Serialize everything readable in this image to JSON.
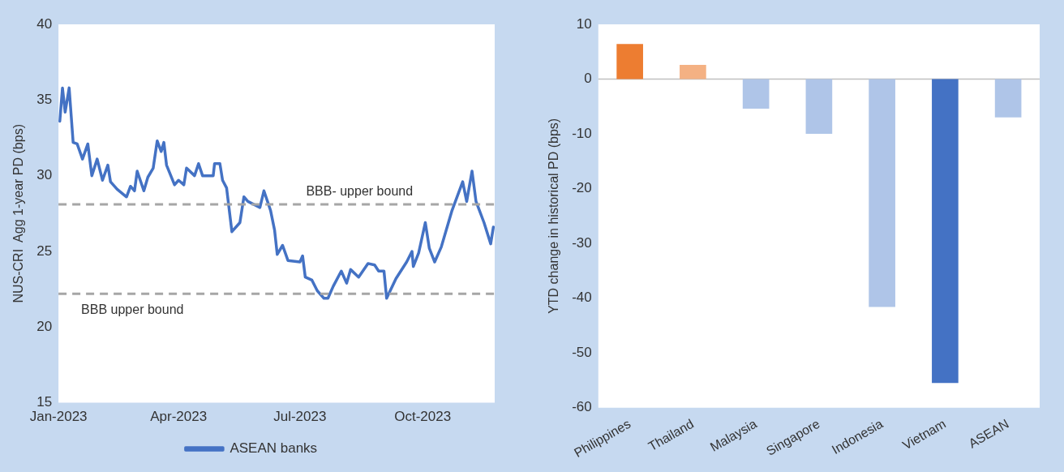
{
  "chart_data": [
    {
      "type": "line",
      "ylabel": "NUS-CRI  Agg 1-year PD (bps)",
      "xlim": [
        "2023-01-01",
        "2023-11-24"
      ],
      "xticks": [
        {
          "value": "2023-01-01",
          "label": "Jan-2023"
        },
        {
          "value": "2023-04-01",
          "label": "Apr-2023"
        },
        {
          "value": "2023-07-01",
          "label": "Jul-2023"
        },
        {
          "value": "2023-10-01",
          "label": "Oct-2023"
        }
      ],
      "ylim": [
        15,
        40
      ],
      "yticks": [
        15,
        20,
        25,
        30,
        35,
        40
      ],
      "legend": "bottom",
      "line_style": "solid",
      "series": [
        {
          "name": "ASEAN banks",
          "color": "#4472c4",
          "x": [
            "2023-01-02",
            "2023-01-04",
            "2023-01-06",
            "2023-01-09",
            "2023-01-12",
            "2023-01-15",
            "2023-01-19",
            "2023-01-23",
            "2023-01-26",
            "2023-01-30",
            "2023-02-03",
            "2023-02-07",
            "2023-02-09",
            "2023-02-14",
            "2023-02-21",
            "2023-02-24",
            "2023-02-27",
            "2023-03-01",
            "2023-03-06",
            "2023-03-09",
            "2023-03-13",
            "2023-03-16",
            "2023-03-19",
            "2023-03-21",
            "2023-03-23",
            "2023-03-29",
            "2023-04-01",
            "2023-04-05",
            "2023-04-07",
            "2023-04-13",
            "2023-04-16",
            "2023-04-19",
            "2023-04-27",
            "2023-04-28",
            "2023-05-02",
            "2023-05-04",
            "2023-05-07",
            "2023-05-11",
            "2023-05-17",
            "2023-05-20",
            "2023-05-23",
            "2023-06-01",
            "2023-06-04",
            "2023-06-09",
            "2023-06-12",
            "2023-06-14",
            "2023-06-18",
            "2023-06-22",
            "2023-07-01",
            "2023-07-03",
            "2023-07-05",
            "2023-07-10",
            "2023-07-14",
            "2023-07-19",
            "2023-07-22",
            "2023-07-26",
            "2023-08-01",
            "2023-08-05",
            "2023-08-08",
            "2023-08-14",
            "2023-08-21",
            "2023-08-26",
            "2023-08-29",
            "2023-09-02",
            "2023-09-04",
            "2023-09-11",
            "2023-09-19",
            "2023-09-23",
            "2023-09-24",
            "2023-09-28",
            "2023-10-03",
            "2023-10-06",
            "2023-10-10",
            "2023-10-15",
            "2023-10-23",
            "2023-10-31",
            "2023-11-03",
            "2023-11-07",
            "2023-11-10",
            "2023-11-16",
            "2023-11-21",
            "2023-11-23"
          ],
          "values": [
            33.6,
            35.8,
            34.2,
            35.8,
            32.2,
            32.1,
            31.1,
            32.1,
            30.0,
            31.1,
            29.7,
            30.7,
            29.6,
            29.1,
            28.6,
            29.3,
            29.0,
            30.3,
            29.0,
            29.9,
            30.5,
            32.3,
            31.6,
            32.2,
            30.7,
            29.4,
            29.7,
            29.4,
            30.5,
            30.0,
            30.8,
            30.0,
            30.0,
            30.8,
            30.8,
            29.7,
            29.2,
            26.3,
            26.9,
            28.6,
            28.3,
            27.9,
            29.0,
            27.7,
            26.4,
            24.8,
            25.4,
            24.4,
            24.3,
            24.7,
            23.3,
            23.1,
            22.4,
            21.9,
            21.9,
            22.7,
            23.7,
            22.9,
            23.8,
            23.3,
            24.2,
            24.1,
            23.7,
            23.7,
            21.9,
            23.2,
            24.3,
            25.0,
            24.0,
            24.9,
            26.9,
            25.2,
            24.3,
            25.3,
            27.7,
            29.6,
            28.3,
            30.3,
            28.3,
            26.9,
            25.5,
            26.6
          ]
        }
      ],
      "ref_lines": [
        {
          "axis": "y",
          "value": 28.1,
          "label": "BBB- upper bound",
          "color": "#a6a6a6",
          "line_style": "dashed"
        },
        {
          "axis": "y",
          "value": 22.2,
          "label": "BBB upper bound",
          "color": "#a6a6a6",
          "line_style": "dashed"
        }
      ]
    },
    {
      "type": "bar",
      "ylabel": "YTD change in historical PD (bps)",
      "categories": [
        "Philippines",
        "Thailand",
        "Malaysia",
        "Singapore",
        "Indonesia",
        "Vietnam",
        "ASEAN"
      ],
      "values": [
        6.4,
        2.6,
        -5.4,
        -10.0,
        -41.6,
        -55.5,
        -7.0
      ],
      "colors": [
        "#ed7d31",
        "#f4b183",
        "#afc5e8",
        "#afc5e8",
        "#afc5e8",
        "#4472c4",
        "#afc5e8"
      ],
      "ylim": [
        -60,
        10
      ],
      "yticks": [
        -60,
        -50,
        -40,
        -30,
        -20,
        -10,
        0,
        10
      ]
    }
  ]
}
